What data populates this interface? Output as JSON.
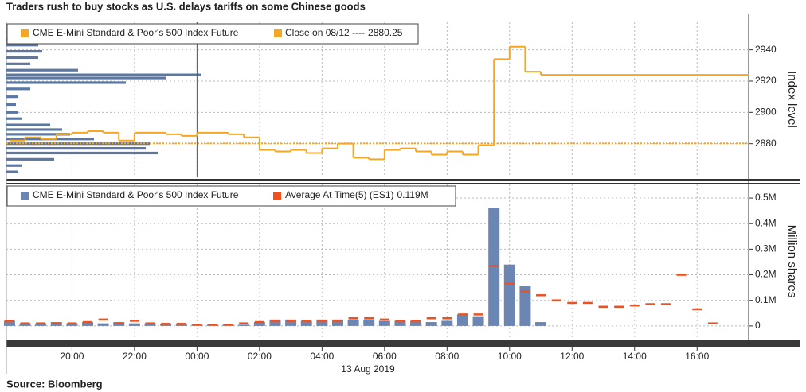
{
  "title": "Traders rush to buy stocks as U.S. delays tariffs on some Chinese goods",
  "source": "Source: Bloomberg",
  "date_label": "13 Aug 2019",
  "xlim": [
    17.9,
    41.65
  ],
  "xticks": [
    {
      "value": 20,
      "label": "20:00"
    },
    {
      "value": 22,
      "label": "22:00"
    },
    {
      "value": 24,
      "label": "00:00"
    },
    {
      "value": 26,
      "label": "02:00"
    },
    {
      "value": 28,
      "label": "04:00"
    },
    {
      "value": 30,
      "label": "06:00"
    },
    {
      "value": 32,
      "label": "08:00"
    },
    {
      "value": 34,
      "label": "10:00"
    },
    {
      "value": 36,
      "label": "12:00"
    },
    {
      "value": 38,
      "label": "14:00"
    },
    {
      "value": 40,
      "label": "16:00"
    }
  ],
  "chart_data": [
    {
      "type": "step",
      "y_label": "Index level",
      "ylim": [
        2859,
        2957.6
      ],
      "yticks": [
        2880,
        2900,
        2920,
        2940
      ],
      "grid": true,
      "series": [
        {
          "name": "CME E-Mini Standard & Poor's 500 Index Future",
          "color": "#f5a623",
          "x": [
            18,
            18.5,
            19,
            19.5,
            20,
            20.5,
            21,
            21.5,
            22,
            22.5,
            23,
            23.5,
            24,
            24.5,
            25,
            25.5,
            26,
            26.5,
            27,
            27.5,
            28,
            28.5,
            29,
            29.5,
            30,
            30.5,
            31,
            31.5,
            32,
            32.5,
            33,
            33.5,
            34,
            34.5,
            35,
            35.5
          ],
          "values": [
            2882,
            2884,
            2883,
            2886,
            2887,
            2888,
            2887,
            2882,
            2887,
            2887,
            2886,
            2885,
            2887,
            2887,
            2886,
            2884,
            2876,
            2875,
            2876,
            2874,
            2877,
            2880,
            2871,
            2870,
            2876,
            2877,
            2875,
            2873,
            2875,
            2873,
            2879,
            2934,
            2942,
            2926,
            2924,
            2924
          ]
        }
      ],
      "reference": {
        "name": "Close on 08/12 ----",
        "value": 2880.25,
        "color": "#f5a623"
      },
      "volume_profile": {
        "color": "#5b78a5",
        "levels": [
          2862,
          2866,
          2870,
          2874,
          2877,
          2880,
          2883,
          2886,
          2889,
          2892,
          2896,
          2900,
          2905,
          2910,
          2915,
          2919,
          2922,
          2924,
          2927,
          2931,
          2935,
          2939,
          2943,
          2947
        ],
        "values": [
          15,
          20,
          60,
          190,
          175,
          180,
          110,
          80,
          70,
          55,
          20,
          15,
          12,
          15,
          30,
          150,
          200,
          245,
          90,
          30,
          40,
          45,
          40,
          30
        ]
      }
    },
    {
      "type": "bar",
      "y_label": "Million shares",
      "ylim": [
        -0.047,
        0.553
      ],
      "yticks": [
        0,
        {
          "value": 0.1,
          "label": "0.1M"
        },
        {
          "value": 0.2,
          "label": "0.2M"
        },
        {
          "value": 0.3,
          "label": "0.3M"
        },
        {
          "value": 0.4,
          "label": "0.4M"
        },
        {
          "value": 0.5,
          "label": "0.5M"
        }
      ],
      "grid": true,
      "series": [
        {
          "name": "CME E-Mini Standard & Poor's 500 Index Future",
          "color": "#6b86b3",
          "style": "bar",
          "x": [
            18,
            18.5,
            19,
            19.5,
            20,
            20.5,
            21,
            21.5,
            22,
            22.5,
            23,
            23.5,
            24,
            24.5,
            25,
            25.5,
            26,
            26.5,
            27,
            27.5,
            28,
            28.5,
            29,
            29.5,
            30,
            30.5,
            31,
            31.5,
            32,
            32.5,
            33,
            33.5,
            34,
            34.5,
            35
          ],
          "values": [
            0.02,
            0.01,
            0.01,
            0.015,
            0.01,
            0.015,
            0.01,
            0.015,
            0.01,
            0.01,
            0.008,
            0.008,
            0.005,
            0.005,
            0.005,
            0.005,
            0.015,
            0.025,
            0.025,
            0.02,
            0.025,
            0.025,
            0.025,
            0.025,
            0.02,
            0.02,
            0.02,
            0.015,
            0.02,
            0.045,
            0.035,
            0.46,
            0.24,
            0.155,
            0.015
          ]
        },
        {
          "name": "Average At Time(5) (ES1)",
          "color": "#f0501e",
          "style": "dash",
          "legend_value": {
            "value": 0.119,
            "label": "0.119M"
          },
          "x": [
            18,
            18.5,
            19,
            19.5,
            20,
            20.5,
            21,
            21.5,
            22,
            22.5,
            23,
            23.5,
            24,
            24.5,
            25,
            25.5,
            26,
            26.5,
            27,
            27.5,
            28,
            28.5,
            29,
            29.5,
            30,
            30.5,
            31,
            31.5,
            32,
            32.5,
            33,
            33.5,
            34,
            34.5,
            35,
            35.5,
            36,
            36.5,
            37,
            37.5,
            38,
            38.5,
            39,
            39.5,
            40,
            40.5
          ],
          "values": [
            0.02,
            0.01,
            0.01,
            0.01,
            0.01,
            0.015,
            0.025,
            0.01,
            0.02,
            0.01,
            0.008,
            0.008,
            0.005,
            0.005,
            0.005,
            0.01,
            0.015,
            0.02,
            0.02,
            0.02,
            0.02,
            0.02,
            0.03,
            0.03,
            0.025,
            0.02,
            0.02,
            0.03,
            0.03,
            0.045,
            0.045,
            0.235,
            0.165,
            0.135,
            0.12,
            0.1,
            0.09,
            0.09,
            0.075,
            0.075,
            0.08,
            0.085,
            0.085,
            0.2,
            0.065,
            0.01
          ]
        }
      ]
    }
  ]
}
